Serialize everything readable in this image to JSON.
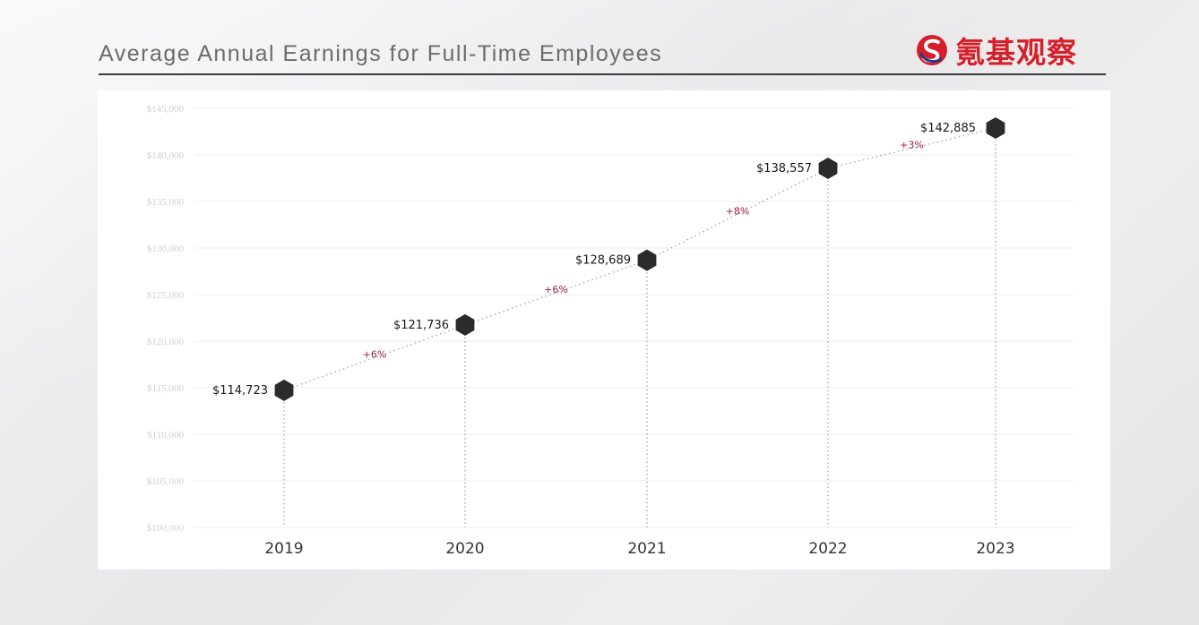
{
  "header": {
    "title": "Average Annual Earnings for Full-Time Employees",
    "logo_text": "氪基观察",
    "logo_icon": "s-swirl-logo-icon",
    "brand_color": "#d61f2a"
  },
  "chart_data": {
    "type": "line",
    "title": "Average Annual Earnings for Full-Time Employees",
    "xlabel": "",
    "ylabel": "",
    "categories": [
      "2019",
      "2020",
      "2021",
      "2022",
      "2023"
    ],
    "series": [
      {
        "values": [
          114723,
          121736,
          128689,
          138557,
          142885
        ],
        "data_labels": [
          "$114,723",
          "$121,736",
          "$128,689",
          "$138,557",
          "$142,885"
        ]
      }
    ],
    "growth_labels": [
      "+6%",
      "+6%",
      "+8%",
      "+3%"
    ],
    "ylim": [
      100000,
      145000
    ],
    "yticks": [
      100000,
      105000,
      110000,
      115000,
      120000,
      125000,
      130000,
      135000,
      140000,
      145000
    ],
    "ytick_labels": [
      "$100,000",
      "$105,000",
      "$110,000",
      "$115,000",
      "$120,000",
      "$125,000",
      "$130,000",
      "$135,000",
      "$140,000",
      "$145,000"
    ],
    "grid": true,
    "legend": "none",
    "marker": "hexagon",
    "marker_color": "#2b2b2e",
    "growth_color": "#9e1e37"
  }
}
